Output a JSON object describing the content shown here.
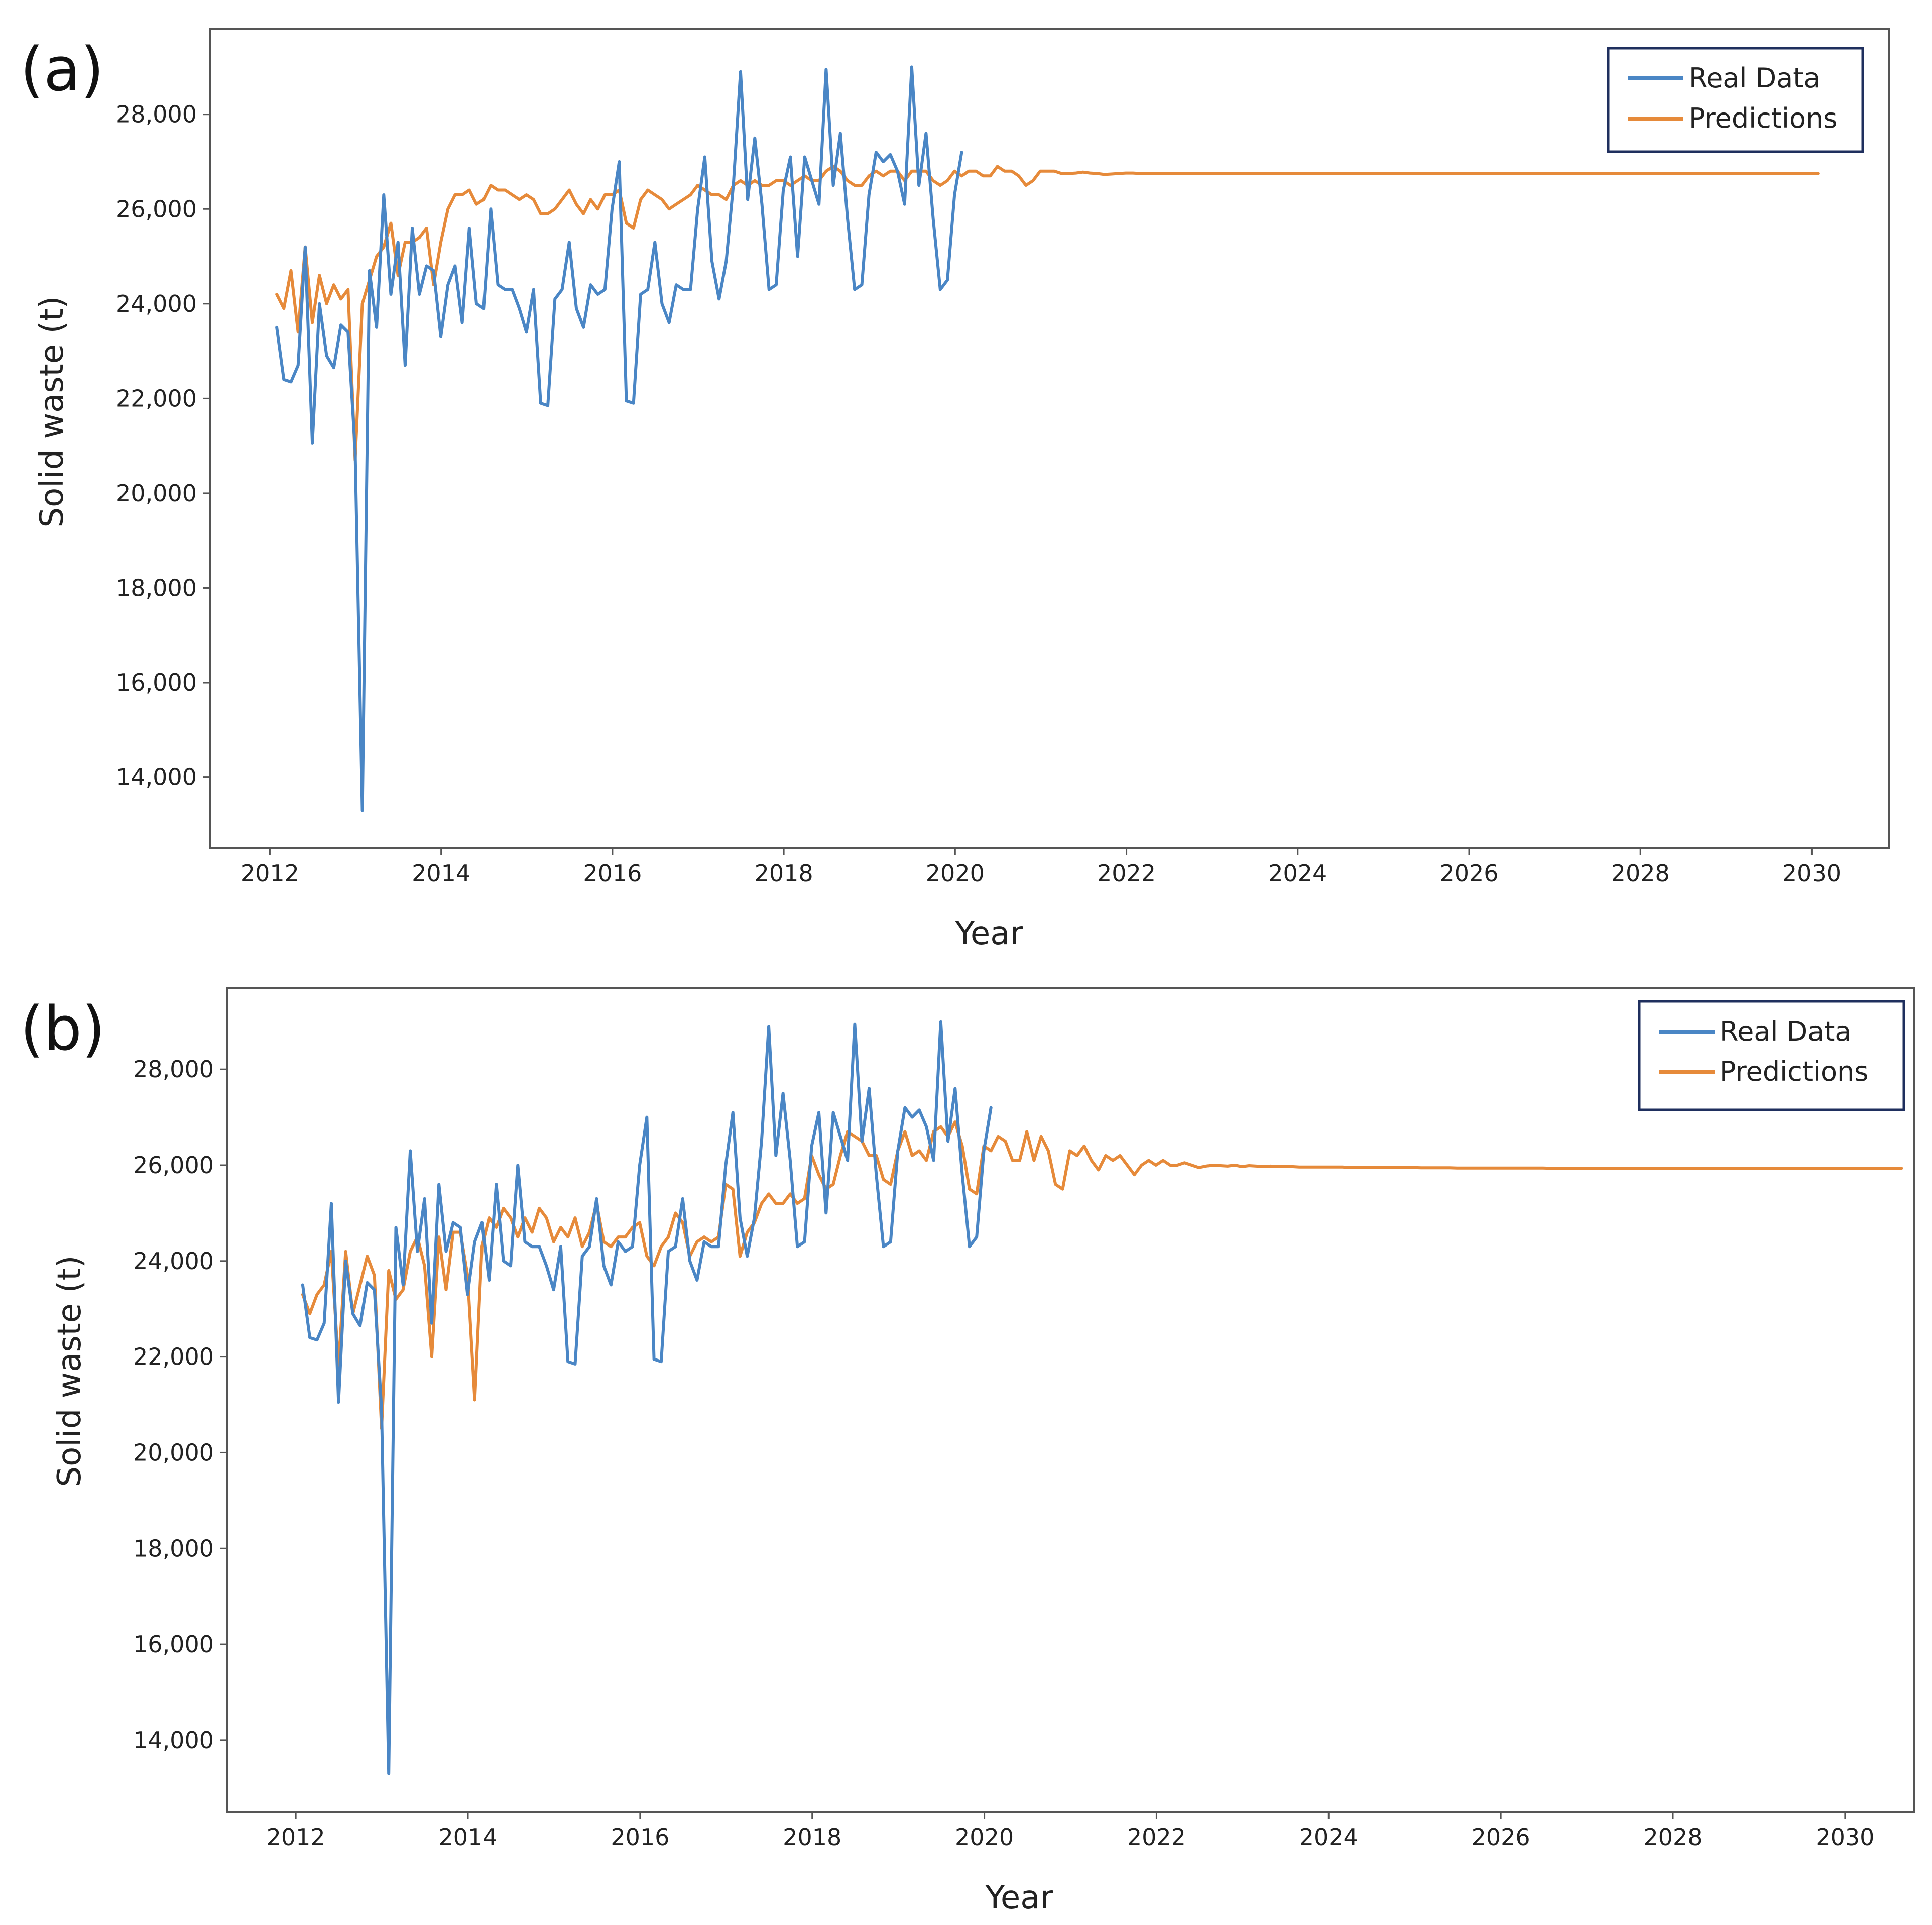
{
  "figure": {
    "panels": [
      "(a)",
      "(b)"
    ]
  },
  "colors": {
    "real": "#4a86c5",
    "pred": "#e68a3a",
    "frame": "#555555",
    "legend_border": "#1f2f5e"
  },
  "chart_data": [
    {
      "type": "line",
      "panel_label": "(a)",
      "title": "",
      "xlabel": "Year",
      "ylabel": "Solid waste (t)",
      "xlim": [
        2011.3,
        2030.9
      ],
      "ylim": [
        12500,
        29800
      ],
      "xticks": [
        2012,
        2014,
        2016,
        2018,
        2020,
        2022,
        2024,
        2026,
        2028,
        2030
      ],
      "xtick_labels": [
        "2012",
        "2014",
        "2016",
        "2018",
        "2020",
        "2022",
        "2024",
        "2026",
        "2028",
        "2030"
      ],
      "yticks": [
        14000,
        16000,
        18000,
        20000,
        22000,
        24000,
        26000,
        28000
      ],
      "ytick_labels": [
        "14,000",
        "16,000",
        "18,000",
        "20,000",
        "22,000",
        "24,000",
        "26,000",
        "28,000"
      ],
      "legend": {
        "position": "top-right",
        "entries": [
          "Real Data",
          "Predictions"
        ]
      },
      "series": [
        {
          "name": "Real Data",
          "x_start": 2012.08,
          "x_step": 0.0833,
          "values": [
            23500,
            22400,
            22350,
            22700,
            25200,
            21050,
            24000,
            22900,
            22650,
            23550,
            23400,
            20900,
            13300,
            24700,
            23500,
            26300,
            24200,
            25300,
            22700,
            25600,
            24200,
            24800,
            24700,
            23300,
            24400,
            24800,
            23600,
            25600,
            24000,
            23900,
            26000,
            24400,
            24300,
            24300,
            23900,
            23400,
            24300,
            21900,
            21850,
            24100,
            24300,
            25300,
            23900,
            23500,
            24400,
            24200,
            24300,
            26000,
            27000,
            21950,
            21900,
            24200,
            24300,
            25300,
            24000,
            23600,
            24400,
            24300,
            24300,
            26000,
            27100,
            24900,
            24100,
            24900,
            26500,
            28900,
            26200,
            27500,
            26100,
            24300,
            24400,
            26400,
            27100,
            25000,
            27100,
            26600,
            26100,
            28950,
            26500,
            27600,
            25800,
            24300,
            24400,
            26300,
            27200,
            27000,
            27150,
            26800,
            26100,
            29000,
            26500,
            27600,
            25800,
            24300,
            24500,
            26300,
            27200
          ]
        },
        {
          "name": "Predictions",
          "x_start": 2012.08,
          "x_step": 0.0833,
          "values": [
            24200,
            23900,
            24700,
            23400,
            25200,
            23600,
            24600,
            24000,
            24400,
            24100,
            24300,
            20700,
            24000,
            24500,
            25000,
            25200,
            25700,
            24600,
            25300,
            25300,
            25400,
            25600,
            24400,
            25300,
            26000,
            26300,
            26300,
            26400,
            26100,
            26200,
            26500,
            26400,
            26400,
            26300,
            26200,
            26300,
            26200,
            25900,
            25900,
            26000,
            26200,
            26400,
            26100,
            25900,
            26200,
            26000,
            26300,
            26300,
            26400,
            25700,
            25600,
            26200,
            26400,
            26300,
            26200,
            26000,
            26100,
            26200,
            26300,
            26500,
            26400,
            26300,
            26300,
            26200,
            26500,
            26600,
            26500,
            26600,
            26500,
            26500,
            26600,
            26600,
            26500,
            26600,
            26700,
            26600,
            26600,
            26800,
            26900,
            26800,
            26600,
            26500,
            26500,
            26700,
            26800,
            26700,
            26800,
            26800,
            26600,
            26800,
            26800,
            26800,
            26600,
            26500,
            26600,
            26800,
            26700,
            26800,
            26800,
            26700,
            26700,
            26900,
            26800,
            26800,
            26700,
            26500,
            26600,
            26800,
            26800,
            26800,
            26750,
            26750,
            26760,
            26780,
            26760,
            26750,
            26730,
            26740,
            26750,
            26760,
            26760,
            26750,
            26750,
            26750,
            26750,
            26750,
            26750,
            26750,
            26750,
            26750,
            26750,
            26750,
            26750,
            26750,
            26750,
            26750,
            26750,
            26750,
            26750,
            26750,
            26750,
            26750,
            26750,
            26750,
            26750,
            26750,
            26750,
            26750,
            26750,
            26750,
            26750,
            26750,
            26750,
            26750,
            26750,
            26750,
            26750,
            26750,
            26750,
            26750,
            26750,
            26750,
            26750,
            26750,
            26750,
            26750,
            26750,
            26750,
            26750,
            26750,
            26750,
            26750,
            26750,
            26750,
            26750,
            26750,
            26750,
            26750,
            26750,
            26750,
            26750,
            26750,
            26750,
            26750,
            26750,
            26750,
            26750,
            26750,
            26750,
            26750,
            26750,
            26750,
            26750,
            26750,
            26750,
            26750,
            26750,
            26750,
            26750,
            26750,
            26750,
            26750,
            26750,
            26750,
            26750,
            26750,
            26750,
            26750,
            26750,
            26750,
            26750,
            26750,
            26750,
            26750,
            26750,
            26750,
            26750
          ]
        }
      ]
    },
    {
      "type": "line",
      "panel_label": "(b)",
      "title": "",
      "xlabel": "Year",
      "ylabel": "Solid waste (t)",
      "xlim": [
        2011.2,
        2030.8
      ],
      "ylim": [
        12500,
        29700
      ],
      "xticks": [
        2012,
        2014,
        2016,
        2018,
        2020,
        2022,
        2024,
        2026,
        2028,
        2030
      ],
      "xtick_labels": [
        "2012",
        "2014",
        "2016",
        "2018",
        "2020",
        "2022",
        "2024",
        "2026",
        "2028",
        "2030"
      ],
      "yticks": [
        14000,
        16000,
        18000,
        20000,
        22000,
        24000,
        26000,
        28000
      ],
      "ytick_labels": [
        "14,000",
        "16,000",
        "18,000",
        "20,000",
        "22,000",
        "24,000",
        "26,000",
        "28,000"
      ],
      "legend": {
        "position": "top-right",
        "entries": [
          "Real Data",
          "Predictions"
        ]
      },
      "series": [
        {
          "name": "Real Data",
          "x_start": 2012.08,
          "x_step": 0.0833,
          "values": [
            23500,
            22400,
            22350,
            22700,
            25200,
            21050,
            24000,
            22900,
            22650,
            23550,
            23400,
            20900,
            13300,
            24700,
            23500,
            26300,
            24200,
            25300,
            22700,
            25600,
            24200,
            24800,
            24700,
            23300,
            24400,
            24800,
            23600,
            25600,
            24000,
            23900,
            26000,
            24400,
            24300,
            24300,
            23900,
            23400,
            24300,
            21900,
            21850,
            24100,
            24300,
            25300,
            23900,
            23500,
            24400,
            24200,
            24300,
            26000,
            27000,
            21950,
            21900,
            24200,
            24300,
            25300,
            24000,
            23600,
            24400,
            24300,
            24300,
            26000,
            27100,
            24900,
            24100,
            24900,
            26500,
            28900,
            26200,
            27500,
            26100,
            24300,
            24400,
            26400,
            27100,
            25000,
            27100,
            26600,
            26100,
            28950,
            26500,
            27600,
            25800,
            24300,
            24400,
            26300,
            27200,
            27000,
            27150,
            26800,
            26100,
            29000,
            26500,
            27600,
            25800,
            24300,
            24500,
            26300,
            27200
          ]
        },
        {
          "name": "Predictions",
          "x_start": 2012.08,
          "x_step": 0.0833,
          "values": [
            23300,
            22900,
            23300,
            23500,
            24200,
            21800,
            24200,
            22900,
            23500,
            24100,
            23700,
            20500,
            23800,
            23200,
            23400,
            24200,
            24500,
            23900,
            22000,
            24500,
            23400,
            24600,
            24600,
            23700,
            21100,
            24300,
            24900,
            24700,
            25100,
            24900,
            24500,
            24900,
            24600,
            25100,
            24900,
            24400,
            24700,
            24500,
            24900,
            24300,
            24600,
            25200,
            24400,
            24300,
            24500,
            24500,
            24700,
            24800,
            24100,
            23900,
            24300,
            24500,
            25000,
            24800,
            24100,
            24400,
            24500,
            24400,
            24500,
            25600,
            25500,
            24100,
            24600,
            24800,
            25200,
            25400,
            25200,
            25200,
            25400,
            25200,
            25300,
            26200,
            25800,
            25500,
            25600,
            26200,
            26700,
            26600,
            26500,
            26200,
            26200,
            25700,
            25600,
            26300,
            26700,
            26200,
            26300,
            26100,
            26700,
            26800,
            26600,
            26900,
            26400,
            25500,
            25400,
            26400,
            26300,
            26600,
            26500,
            26100,
            26100,
            26700,
            26100,
            26600,
            26300,
            25600,
            25500,
            26300,
            26200,
            26400,
            26100,
            25900,
            26200,
            26100,
            26200,
            26000,
            25800,
            26000,
            26100,
            26000,
            26100,
            26000,
            26000,
            26050,
            26000,
            25950,
            25980,
            26000,
            25990,
            25980,
            26000,
            25970,
            25990,
            25980,
            25970,
            25980,
            25970,
            25970,
            25970,
            25960,
            25960,
            25960,
            25960,
            25960,
            25960,
            25960,
            25950,
            25950,
            25950,
            25950,
            25950,
            25950,
            25950,
            25950,
            25950,
            25950,
            25945,
            25945,
            25945,
            25945,
            25945,
            25940,
            25940,
            25940,
            25940,
            25940,
            25940,
            25940,
            25940,
            25940,
            25940,
            25940,
            25940,
            25940,
            25935,
            25935,
            25935,
            25935,
            25935,
            25935,
            25935,
            25935,
            25935,
            25935,
            25935,
            25935,
            25935,
            25935,
            25935,
            25935,
            25935,
            25935,
            25935,
            25935,
            25935,
            25935,
            25935,
            25935,
            25935,
            25935,
            25935,
            25935,
            25935,
            25935,
            25935,
            25935,
            25935,
            25935,
            25935,
            25935,
            25935,
            25935,
            25935,
            25935,
            25935,
            25935,
            25935,
            25935,
            25935,
            25935,
            25935,
            25935,
            25935,
            25935
          ]
        }
      ]
    }
  ]
}
